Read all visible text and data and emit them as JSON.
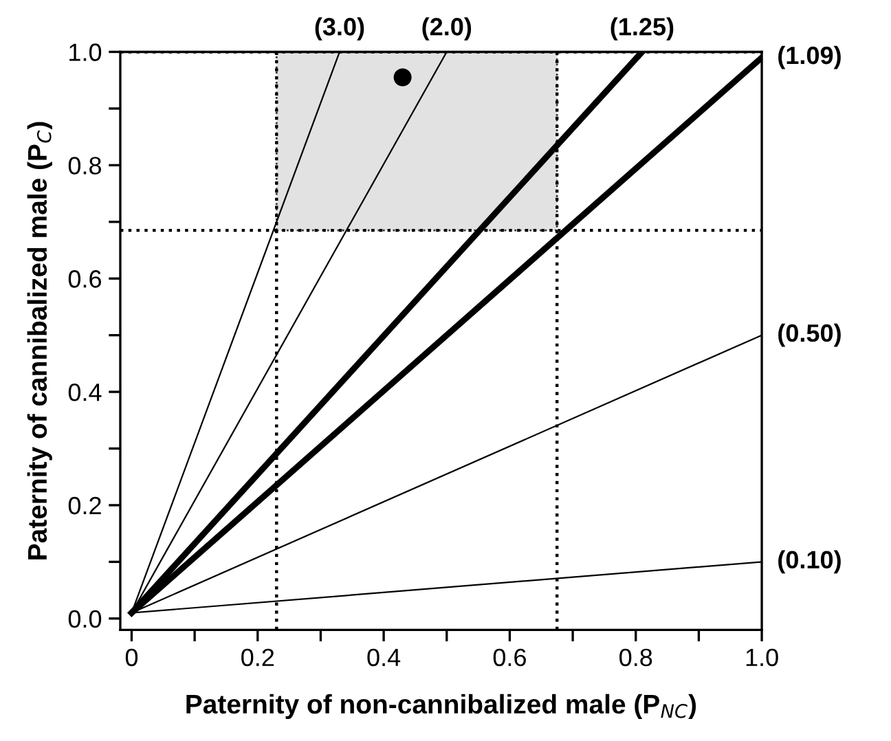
{
  "chart_data": {
    "type": "line",
    "xlabel": "Paternity of non-cannibalized male (P$_{NC}$)",
    "ylabel": "Paternity of cannibalized male (P$_{C}$)",
    "series": [
      {
        "x": [
          0,
          0.33
        ],
        "values": [
          0.01,
          1.0
        ],
        "color": "#000000"
      },
      {
        "x": [
          0,
          0.5
        ],
        "values": [
          0.01,
          1.0
        ],
        "color": "#000000"
      },
      {
        "x": [
          0,
          0.81
        ],
        "values": [
          0.01,
          1.0
        ],
        "color": "#000000"
      },
      {
        "x": [
          0,
          1.0
        ],
        "values": [
          0.01,
          0.99
        ],
        "color": "#000000"
      },
      {
        "x": [
          0,
          1.0
        ],
        "values": [
          0.01,
          0.5
        ],
        "color": "#000000"
      },
      {
        "x": [
          0,
          1.0
        ],
        "values": [
          0.01,
          0.1
        ],
        "color": "#000000"
      },
      {
        "type": "scatter",
        "x": [
          0.43
        ],
        "values": [
          0.955
        ],
        "color": "#000000",
        "marker": "circle"
      }
    ],
    "annotations": [
      {
        "text": "(3.0)",
        "x": 0.33,
        "y": 1.0
      },
      {
        "text": "(2.0)",
        "x": 0.5,
        "y": 1.0
      },
      {
        "text": "(1.25)",
        "x": 0.81,
        "y": 1.0
      },
      {
        "text": "(1.09)",
        "x": 1.0,
        "y": 0.99
      },
      {
        "text": "(0.50)",
        "x": 1.0,
        "y": 0.5
      },
      {
        "text": "(0.10)",
        "x": 1.0,
        "y": 0.1
      }
    ],
    "ref_lines": [
      {
        "axis": "x",
        "value": 0.23,
        "line_style": "dotted"
      },
      {
        "axis": "x",
        "value": 0.675,
        "line_style": "dotted"
      },
      {
        "axis": "y",
        "value": 0.685,
        "line_style": "dotted"
      },
      {
        "axis": "y",
        "value": 1.0,
        "line_style": "dotted"
      }
    ],
    "bands": [
      {
        "axis": "x",
        "from": 0.23,
        "to": 0.675,
        "color": "#e2e2e2"
      }
    ],
    "xlim": [
      -0.018,
      1.0
    ],
    "ylim": [
      -0.02,
      1.0
    ],
    "xticks": [
      0,
      {
        "value": 0.1,
        "label": null
      },
      0.2,
      {
        "value": 0.3,
        "label": null
      },
      0.4,
      {
        "value": 0.5,
        "label": null
      },
      0.6,
      {
        "value": 0.7,
        "label": null
      },
      0.8,
      {
        "value": 0.9,
        "label": null
      },
      {
        "value": 1.0,
        "label": "1.0"
      }
    ],
    "yticks": [
      {
        "value": 0.0,
        "label": "0.0"
      },
      {
        "value": 0.1,
        "label": null
      },
      0.2,
      {
        "value": 0.3,
        "label": null
      },
      0.4,
      {
        "value": 0.5,
        "label": null
      },
      0.6,
      {
        "value": 0.7,
        "label": null
      },
      0.8,
      {
        "value": 0.9,
        "label": null
      },
      {
        "value": 1.0,
        "label": "1.0"
      }
    ],
    "grid": false,
    "legend": false,
    "line_style": "solid"
  }
}
